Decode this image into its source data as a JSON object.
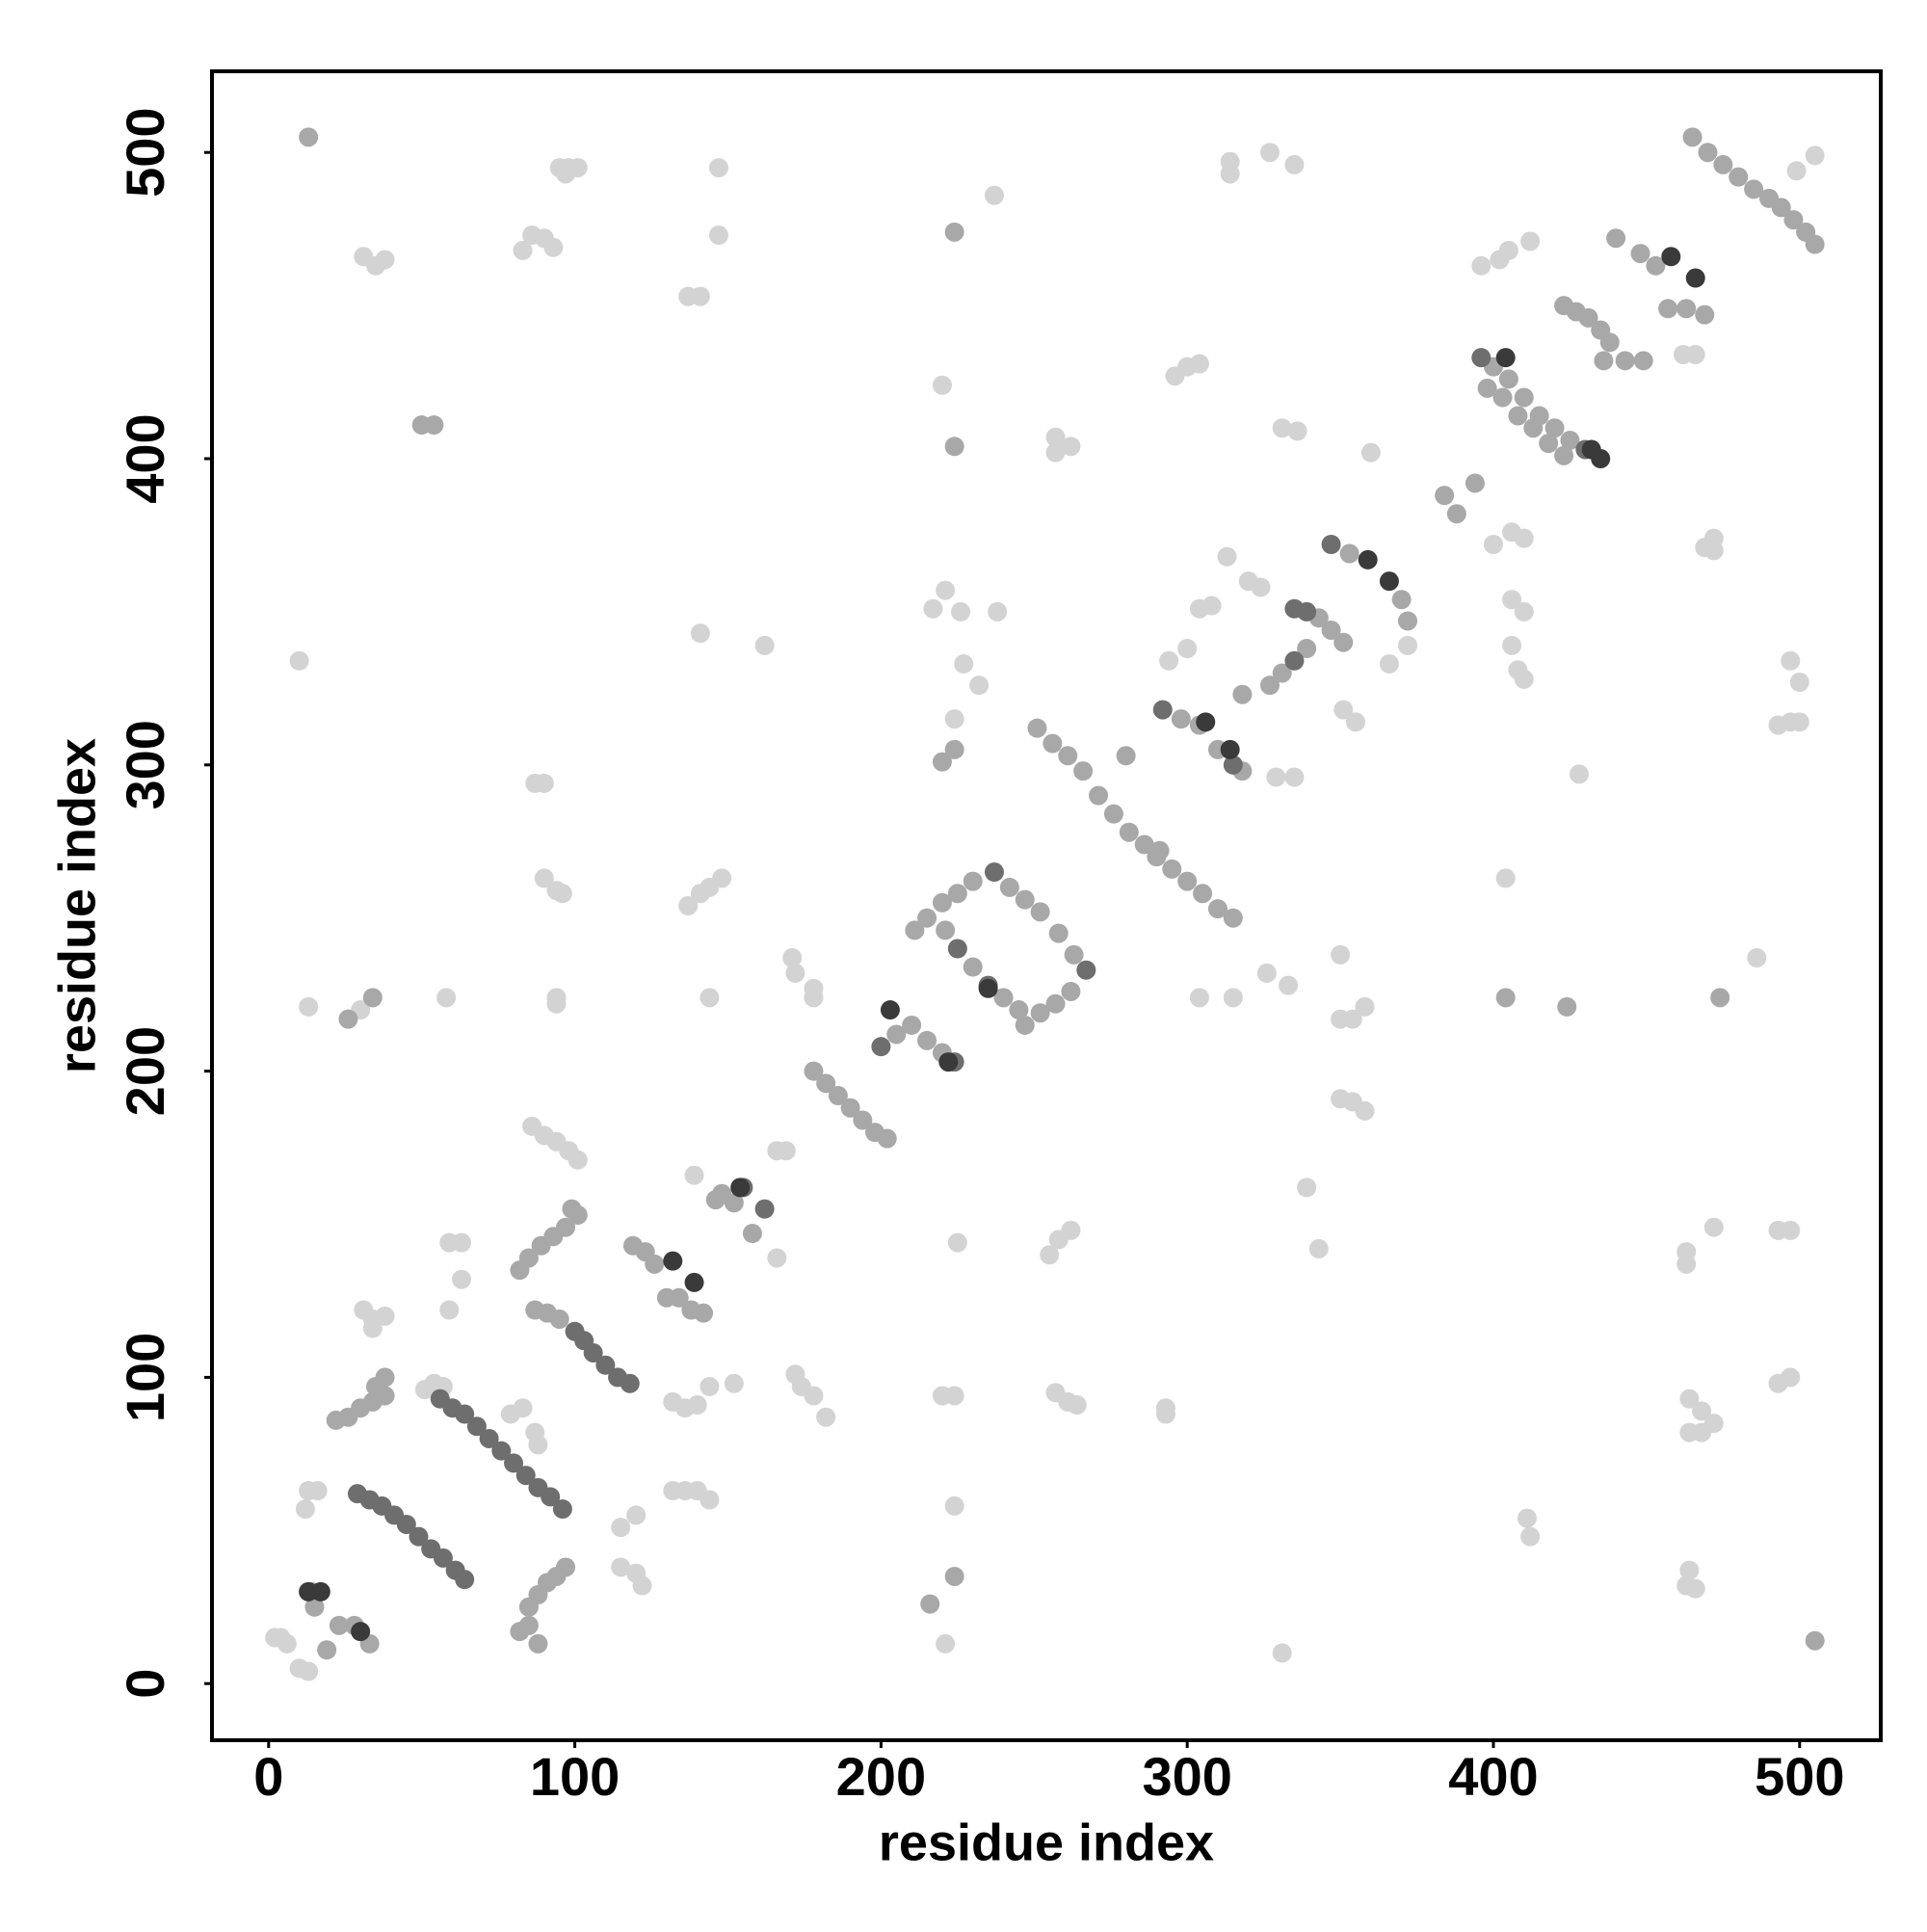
{
  "chart_data": {
    "type": "scatter",
    "xlabel": "residue index",
    "ylabel": "residue index",
    "xlim": [
      -18.5,
      526.5
    ],
    "ylim": [
      -18.5,
      526.5
    ],
    "xticks": [
      0,
      100,
      200,
      300,
      400,
      500
    ],
    "yticks": [
      0,
      100,
      200,
      300,
      400,
      500
    ],
    "series": [
      {
        "color": "#d3d3d3",
        "x": [
          10,
          13,
          30,
          31,
          35,
          38,
          58,
          83,
          86,
          90,
          93,
          87,
          90,
          90,
          94,
          96,
          94,
          94,
          95,
          98,
          101,
          97,
          147,
          147,
          137,
          141,
          141,
          162,
          144,
          137,
          141,
          144,
          148,
          139,
          166,
          237,
          220,
          221,
          217,
          226,
          238,
          227,
          232,
          224,
          225,
          224,
          220,
          224,
          221,
          314,
          314,
          327,
          335,
          296,
          300,
          304,
          331,
          339,
          343,
          293,
          293,
          326,
          333,
          350,
          350,
          354,
          358,
          350,
          354,
          358,
          304,
          315,
          404,
          486,
          411,
          412,
          406,
          410,
          400,
          406,
          410,
          406,
          408,
          410,
          428,
          472,
          464,
          468,
          472,
          464,
          468,
          464,
          463,
          466,
          463,
          463,
          493,
          497,
          493,
          497,
          497,
          500,
          493,
          497,
          500,
          472,
          472,
          469,
          462,
          466,
          2,
          4,
          6,
          10,
          13,
          12,
          13,
          16,
          31,
          34,
          38,
          34,
          51,
          54,
          57,
          59,
          59,
          63,
          63,
          86,
          90,
          94,
          98,
          101,
          87,
          88,
          79,
          83,
          115,
          120,
          115,
          120,
          122,
          132,
          136,
          140,
          144,
          152,
          132,
          136,
          140,
          144,
          166,
          169,
          172,
          174,
          178,
          182,
          171,
          172,
          178,
          178,
          294,
          300,
          304,
          308,
          313,
          320,
          324,
          396,
          402,
          405,
          412,
          499,
          505,
          372,
          366,
          351,
          355,
          335,
          329,
          255,
          258,
          262,
          257,
          261,
          264,
          257,
          262,
          257,
          331,
          336,
          360
        ],
        "y": [
          334,
          221,
          220,
          466,
          463,
          465,
          224,
          468,
          473,
          472,
          469,
          294,
          294,
          263,
          259,
          258,
          224,
          222,
          495,
          495,
          495,
          493,
          495,
          473,
          453,
          453,
          343,
          339,
          224,
          254,
          258,
          260,
          263,
          166,
          139,
          486,
          424,
          357,
          351,
          350,
          350,
          333,
          326,
          315,
          144,
          58,
          94,
          94,
          13,
          497,
          493,
          500,
          496,
          427,
          430,
          431,
          10,
          162,
          142,
          90,
          88,
          232,
          228,
          238,
          217,
          217,
          221,
          191,
          190,
          187,
          224,
          224,
          263,
          237,
          54,
          48,
          376,
          374,
          372,
          354,
          350,
          339,
          331,
          328,
          297,
          149,
          93,
          89,
          85,
          82,
          82,
          37,
          32,
          31,
          141,
          137,
          148,
          148,
          98,
          100,
          334,
          327,
          313,
          314,
          314,
          374,
          370,
          371,
          434,
          434,
          15,
          15,
          13,
          5,
          4,
          57,
          63,
          63,
          122,
          119,
          120,
          116,
          96,
          98,
          97,
          122,
          144,
          144,
          132,
          182,
          179,
          177,
          174,
          171,
          82,
          78,
          88,
          90,
          51,
          55,
          38,
          36,
          32,
          92,
          90,
          91,
          97,
          98,
          63,
          63,
          63,
          60,
          174,
          174,
          101,
          97,
          94,
          87,
          237,
          232,
          227,
          224,
          334,
          338,
          351,
          352,
          368,
          360,
          358,
          463,
          465,
          468,
          471,
          494,
          499,
          339,
          333,
          318,
          314,
          296,
          296,
          140,
          145,
          148,
          95,
          92,
          91,
          402,
          404,
          407,
          410,
          409,
          402
        ]
      },
      {
        "color": "#a8a8a8",
        "x": [
          13,
          34,
          26,
          50,
          54,
          224,
          224,
          224,
          220,
          216,
          224,
          404,
          424,
          474,
          505,
          14,
          15,
          19,
          23,
          28,
          33,
          22,
          26,
          30,
          34,
          38,
          35,
          38,
          85,
          82,
          85,
          88,
          91,
          94,
          97,
          88,
          82,
          85,
          89,
          93,
          97,
          99,
          101,
          87,
          91,
          95,
          119,
          123,
          126,
          130,
          134,
          138,
          142,
          146,
          148,
          152,
          158,
          178,
          182,
          186,
          190,
          194,
          198,
          202,
          205,
          210,
          215,
          220,
          211,
          215,
          220,
          225,
          230,
          221,
          230,
          240,
          245,
          242,
          247,
          252,
          258,
          263,
          247,
          252,
          257,
          262,
          251,
          256,
          261,
          266,
          271,
          276,
          281,
          286,
          291,
          280,
          290,
          295,
          300,
          305,
          310,
          315,
          298,
          304,
          310,
          318,
          318,
          327,
          331,
          339,
          343,
          347,
          351,
          353,
          370,
          372,
          384,
          388,
          394,
          400,
          405,
          410,
          415,
          420,
          425,
          398,
          403,
          408,
          413,
          418,
          423,
          423,
          427,
          431,
          435,
          438,
          436,
          443,
          449,
          440,
          448,
          453,
          457,
          463,
          469,
          465,
          470,
          475,
          480,
          485,
          490,
          494,
          498,
          502,
          505
        ],
        "y": [
          505,
          224,
          217,
          411,
          411,
          474,
          404,
          305,
          301,
          26,
          35,
          224,
          221,
          224,
          14,
          30,
          25,
          11,
          19,
          19,
          13,
          86,
          87,
          90,
          92,
          94,
          97,
          100,
          19,
          17,
          25,
          29,
          33,
          35,
          38,
          13,
          135,
          139,
          143,
          146,
          149,
          155,
          153,
          122,
          121,
          119,
          143,
          141,
          137,
          126,
          126,
          122,
          121,
          158,
          160,
          157,
          147,
          200,
          196,
          192,
          188,
          184,
          180,
          178,
          212,
          215,
          210,
          206,
          246,
          250,
          255,
          258,
          262,
          246,
          234,
          224,
          220,
          260,
          256,
          252,
          245,
          238,
          215,
          219,
          222,
          226,
          312,
          307,
          303,
          298,
          290,
          284,
          278,
          274,
          272,
          303,
          270,
          266,
          262,
          258,
          253,
          250,
          315,
          313,
          305,
          298,
          323,
          326,
          330,
          338,
          348,
          344,
          340,
          369,
          354,
          347,
          388,
          382,
          392,
          430,
          426,
          420,
          414,
          410,
          406,
          423,
          420,
          414,
          410,
          405,
          401,
          450,
          448,
          446,
          442,
          438,
          432,
          432,
          432,
          472,
          467,
          463,
          449,
          449,
          447,
          505,
          500,
          496,
          492,
          488,
          485,
          482,
          478,
          474,
          470
        ]
      },
      {
        "color": "#6e6e6e",
        "x": [
          29,
          33,
          37,
          41,
          45,
          49,
          53,
          57,
          61,
          64,
          56,
          60,
          64,
          68,
          72,
          76,
          80,
          84,
          88,
          92,
          96,
          100,
          103,
          106,
          110,
          114,
          118,
          155,
          162,
          200,
          224,
          225,
          235,
          237,
          267,
          292,
          315,
          335,
          335,
          339,
          347,
          396,
          430
        ],
        "y": [
          62,
          60,
          58,
          55,
          52,
          48,
          44,
          41,
          37,
          34,
          93,
          90,
          88,
          84,
          80,
          76,
          72,
          68,
          64,
          61,
          57,
          115,
          112,
          108,
          104,
          100,
          98,
          162,
          155,
          208,
          203,
          240,
          228,
          265,
          233,
          318,
          300,
          334,
          351,
          350,
          372,
          433,
          403
        ]
      },
      {
        "color": "#3a3a3a",
        "x": [
          13,
          17,
          30,
          132,
          139,
          154,
          203,
          222,
          235,
          306,
          314,
          359,
          366,
          404,
          432,
          435,
          458,
          466
        ],
        "y": [
          30,
          30,
          17,
          138,
          131,
          162,
          220,
          203,
          227,
          314,
          305,
          367,
          360,
          433,
          403,
          400,
          466,
          459
        ]
      }
    ]
  }
}
